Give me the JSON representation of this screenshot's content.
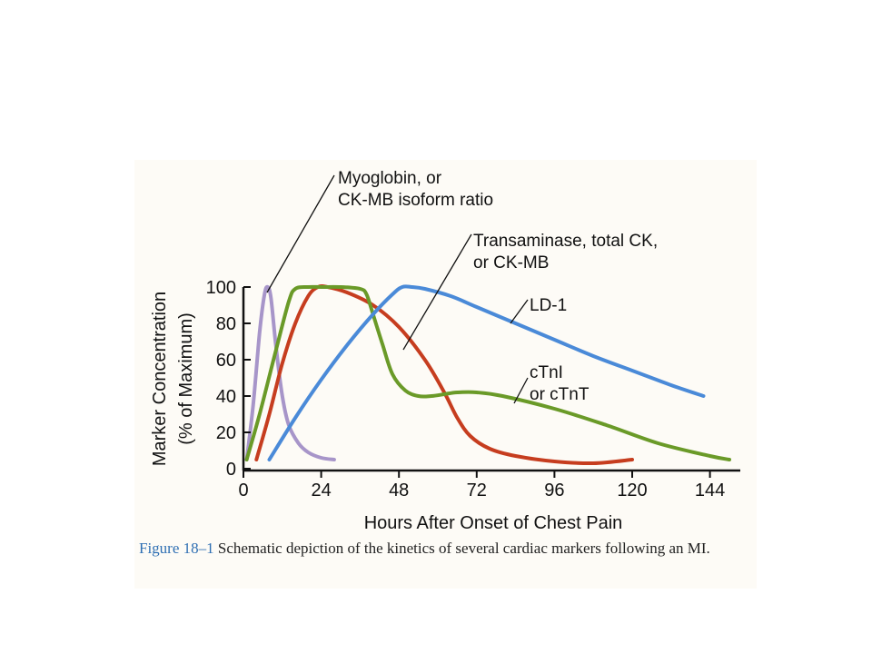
{
  "figure": {
    "caption_number": "Figure 18–1",
    "caption_text": " Schematic depiction of the kinetics of several cardiac markers following an MI."
  },
  "chart_data": {
    "type": "line",
    "xlabel": "Hours After Onset of Chest Pain",
    "ylabel": "Marker Concentration",
    "ylabel_sub": "(% of Maximum)",
    "xlim": [
      0,
      150
    ],
    "ylim": [
      0,
      100
    ],
    "xticks": [
      0,
      24,
      48,
      72,
      96,
      120,
      144
    ],
    "yticks": [
      0,
      20,
      40,
      60,
      80,
      100
    ],
    "grid": false,
    "annotations": [
      {
        "lines": [
          "Myoglobin, or",
          "CK-MB isoform ratio"
        ],
        "series": "myoglobin"
      },
      {
        "lines": [
          "Transaminase, total CK,",
          "or CK-MB"
        ],
        "series": "ckmb"
      },
      {
        "lines": [
          "LD-1"
        ],
        "series": "ld1"
      },
      {
        "lines": [
          "cTnI",
          "or cTnT"
        ],
        "series": "ctn"
      }
    ],
    "series": [
      {
        "key": "myoglobin",
        "color": "#a795c9",
        "x": [
          1,
          3,
          5,
          6.5,
          7.5,
          8.5,
          10,
          12,
          14,
          17,
          20,
          24,
          28
        ],
        "y": [
          5,
          35,
          75,
          96,
          100,
          94,
          68,
          40,
          24,
          14,
          9,
          6,
          5
        ]
      },
      {
        "key": "ckmb",
        "color": "#c63d1f",
        "x": [
          4,
          8,
          12,
          16,
          20,
          23,
          26,
          32,
          40,
          48,
          56,
          62,
          66,
          70,
          76,
          84,
          96,
          108,
          120
        ],
        "y": [
          5,
          30,
          58,
          80,
          95,
          100,
          100,
          97,
          90,
          78,
          60,
          42,
          28,
          18,
          11,
          7,
          4,
          3,
          5
        ]
      },
      {
        "key": "ctn",
        "color": "#6a9a28",
        "x": [
          1,
          5,
          10,
          14,
          16,
          20,
          24,
          30,
          36,
          38,
          40,
          43,
          46,
          50,
          54,
          58,
          62,
          66,
          72,
          80,
          96,
          112,
          128,
          144,
          150
        ],
        "y": [
          5,
          30,
          65,
          92,
          99,
          100,
          100,
          100,
          99,
          96,
          85,
          68,
          52,
          43,
          40,
          40,
          41,
          42,
          42,
          40,
          33,
          24,
          14,
          7,
          5
        ]
      },
      {
        "key": "ld1",
        "color": "#4a8ad8",
        "x": [
          8,
          16,
          24,
          32,
          40,
          46,
          49,
          52,
          56,
          64,
          72,
          84,
          96,
          108,
          120,
          132,
          142
        ],
        "y": [
          5,
          28,
          49,
          68,
          85,
          96,
          100,
          100,
          99,
          95,
          89,
          80,
          71,
          62,
          54,
          46,
          40
        ]
      }
    ]
  }
}
